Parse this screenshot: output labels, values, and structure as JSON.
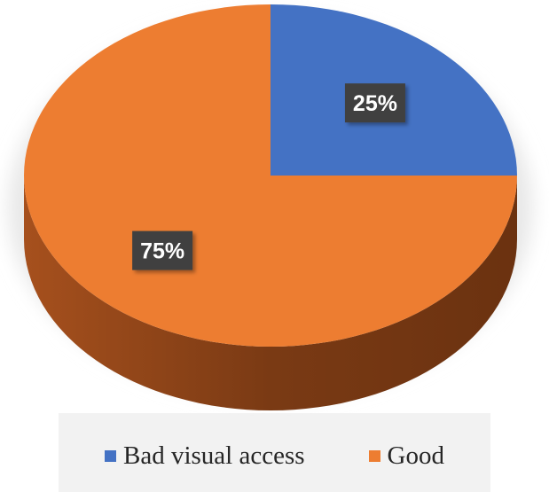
{
  "chart_data": {
    "type": "pie",
    "categories": [
      "Bad visual access",
      "Good"
    ],
    "values": [
      25,
      75
    ],
    "labels": [
      "25%",
      "75%"
    ],
    "colors": [
      "#4472C4",
      "#ED7D31"
    ],
    "legend_position": "bottom"
  }
}
